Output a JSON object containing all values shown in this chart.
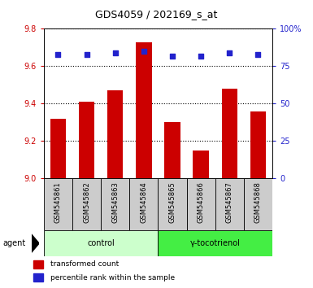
{
  "title": "GDS4059 / 202169_s_at",
  "samples": [
    "GSM545861",
    "GSM545862",
    "GSM545863",
    "GSM545864",
    "GSM545865",
    "GSM545866",
    "GSM545867",
    "GSM545868"
  ],
  "bar_values": [
    9.32,
    9.41,
    9.47,
    9.73,
    9.3,
    9.15,
    9.48,
    9.36
  ],
  "percentile_values": [
    83,
    83,
    84,
    85,
    82,
    82,
    84,
    83
  ],
  "bar_bottom": 9.0,
  "ylim_left": [
    9.0,
    9.8
  ],
  "ylim_right": [
    0,
    100
  ],
  "yticks_left": [
    9.0,
    9.2,
    9.4,
    9.6,
    9.8
  ],
  "yticks_right": [
    0,
    25,
    50,
    75,
    100
  ],
  "ytick_labels_right": [
    "0",
    "25",
    "50",
    "75",
    "100%"
  ],
  "bar_color": "#cc0000",
  "dot_color": "#2222cc",
  "grid_color": "#000000",
  "groups": [
    {
      "label": "control",
      "samples": [
        0,
        1,
        2,
        3
      ],
      "color": "#ccffcc"
    },
    {
      "label": "γ-tocotrienol",
      "samples": [
        4,
        5,
        6,
        7
      ],
      "color": "#44ee44"
    }
  ],
  "agent_label": "agent",
  "legend_bar_label": "transformed count",
  "legend_dot_label": "percentile rank within the sample",
  "bar_width": 0.55,
  "background_color": "#ffffff",
  "label_color_left": "#cc0000",
  "label_color_right": "#2222cc",
  "sample_box_color": "#cccccc",
  "tick_fontsize": 7,
  "label_fontsize": 7,
  "title_fontsize": 9
}
